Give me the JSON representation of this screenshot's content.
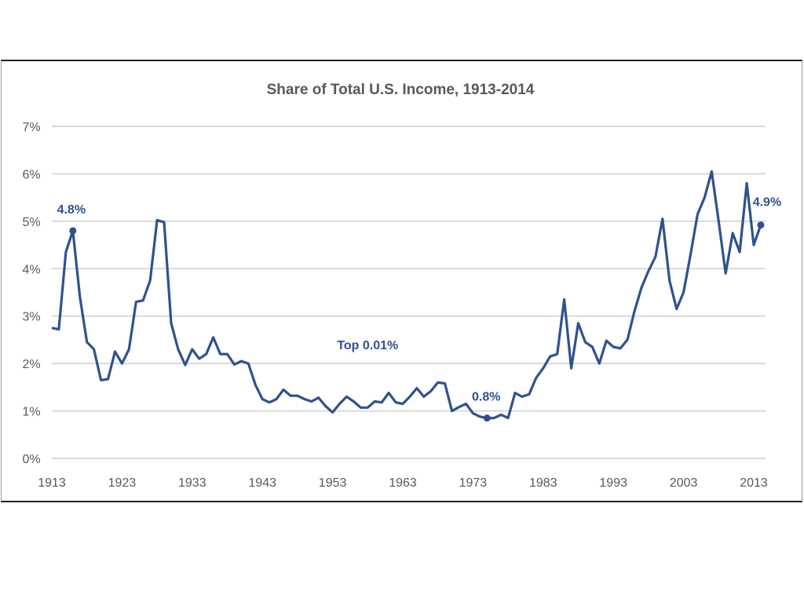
{
  "chart_data": {
    "type": "line",
    "title": "Share of Total U.S. Income, 1913-2014",
    "xlabel": "",
    "ylabel": "",
    "ylim": [
      0,
      7
    ],
    "xlim": [
      1913,
      2014
    ],
    "grid": true,
    "y_ticks": [
      "0%",
      "1%",
      "2%",
      "3%",
      "4%",
      "5%",
      "6%",
      "7%"
    ],
    "x_ticks": [
      "1913",
      "1923",
      "1933",
      "1943",
      "1953",
      "1963",
      "1973",
      "1983",
      "1993",
      "2003",
      "2013"
    ],
    "series": [
      {
        "name": "Top 0.01%",
        "color": "#2F528F",
        "x_start": 1913,
        "values": [
          2.75,
          2.72,
          4.35,
          4.8,
          3.4,
          2.45,
          2.3,
          1.65,
          1.67,
          2.25,
          2.0,
          2.3,
          3.3,
          3.33,
          3.75,
          5.02,
          4.98,
          2.85,
          2.3,
          1.97,
          2.3,
          2.1,
          2.2,
          2.55,
          2.2,
          2.2,
          1.98,
          2.05,
          2.0,
          1.55,
          1.25,
          1.18,
          1.25,
          1.45,
          1.32,
          1.32,
          1.25,
          1.2,
          1.28,
          1.1,
          0.97,
          1.15,
          1.3,
          1.2,
          1.07,
          1.07,
          1.2,
          1.18,
          1.38,
          1.18,
          1.15,
          1.3,
          1.48,
          1.3,
          1.42,
          1.6,
          1.58,
          1.0,
          1.08,
          1.15,
          0.95,
          0.88,
          0.85,
          0.85,
          0.92,
          0.85,
          1.38,
          1.3,
          1.35,
          1.7,
          1.9,
          2.15,
          2.2,
          3.35,
          1.9,
          2.85,
          2.45,
          2.35,
          2.0,
          2.48,
          2.35,
          2.32,
          2.5,
          3.1,
          3.6,
          3.95,
          4.25,
          5.05,
          3.75,
          3.15,
          3.5,
          4.3,
          5.15,
          5.5,
          6.05,
          5.0,
          3.9,
          4.75,
          4.35,
          5.8,
          4.5,
          4.92
        ]
      }
    ],
    "annotations": [
      {
        "text": "4.8%",
        "x": 1916,
        "y": 4.8,
        "marker": true
      },
      {
        "text": "0.8%",
        "x": 1975,
        "y": 0.85,
        "marker": true
      },
      {
        "text": "4.9%",
        "x": 2014,
        "y": 4.92,
        "marker": true
      },
      {
        "text": "Top 0.01%",
        "x": 1958,
        "y": 2.4,
        "marker": false
      }
    ]
  }
}
